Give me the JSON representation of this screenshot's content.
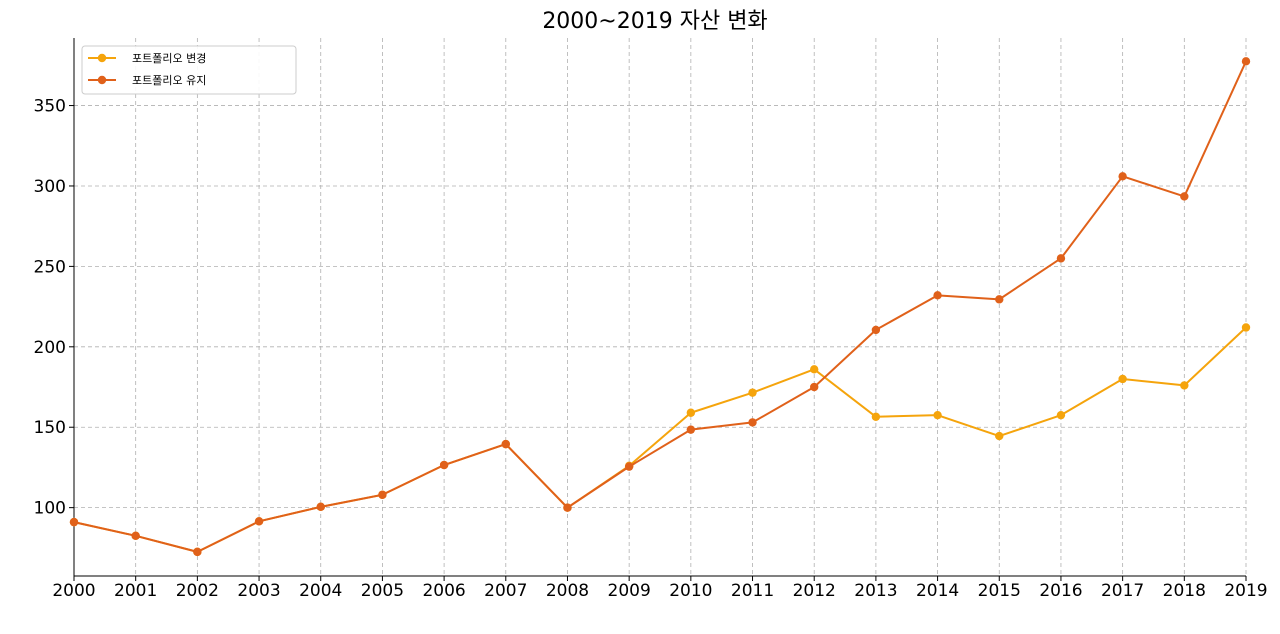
{
  "chart_data": {
    "type": "line",
    "title": "2000~2019 자산 변화",
    "xlabel": "",
    "ylabel": "",
    "x": [
      2000,
      2001,
      2002,
      2003,
      2004,
      2005,
      2006,
      2007,
      2008,
      2009,
      2010,
      2011,
      2012,
      2013,
      2014,
      2015,
      2016,
      2017,
      2018,
      2019
    ],
    "x_tick_labels": [
      "2000",
      "2001",
      "2002",
      "2003",
      "2004",
      "2005",
      "2006",
      "2007",
      "2008",
      "2009",
      "2010",
      "2011",
      "2012",
      "2013",
      "2014",
      "2015",
      "2016",
      "2017",
      "2018",
      "2019"
    ],
    "xlim": [
      2000,
      2019
    ],
    "ylim": [
      57.5,
      392
    ],
    "y_ticks": [
      100,
      150,
      200,
      250,
      300,
      350
    ],
    "y_tick_labels": [
      "100",
      "150",
      "200",
      "250",
      "300",
      "350"
    ],
    "grid": true,
    "legend_position": "top-left",
    "series": [
      {
        "name": "포트폴리오 변경",
        "color": "#F5A40C",
        "values": [
          91,
          82.5,
          72.5,
          91.5,
          100.5,
          108,
          126.5,
          139.5,
          100,
          126,
          159,
          171.5,
          186,
          156.5,
          157.5,
          144.5,
          157.5,
          180,
          176,
          212
        ]
      },
      {
        "name": "포트폴리오 유지",
        "color": "#E0611A",
        "values": [
          91,
          82.5,
          72.5,
          91.5,
          100.5,
          108,
          126.5,
          139.5,
          100,
          125.5,
          148.5,
          153,
          175,
          210.5,
          232,
          229.5,
          255,
          306,
          293.5,
          377.5
        ]
      }
    ]
  }
}
